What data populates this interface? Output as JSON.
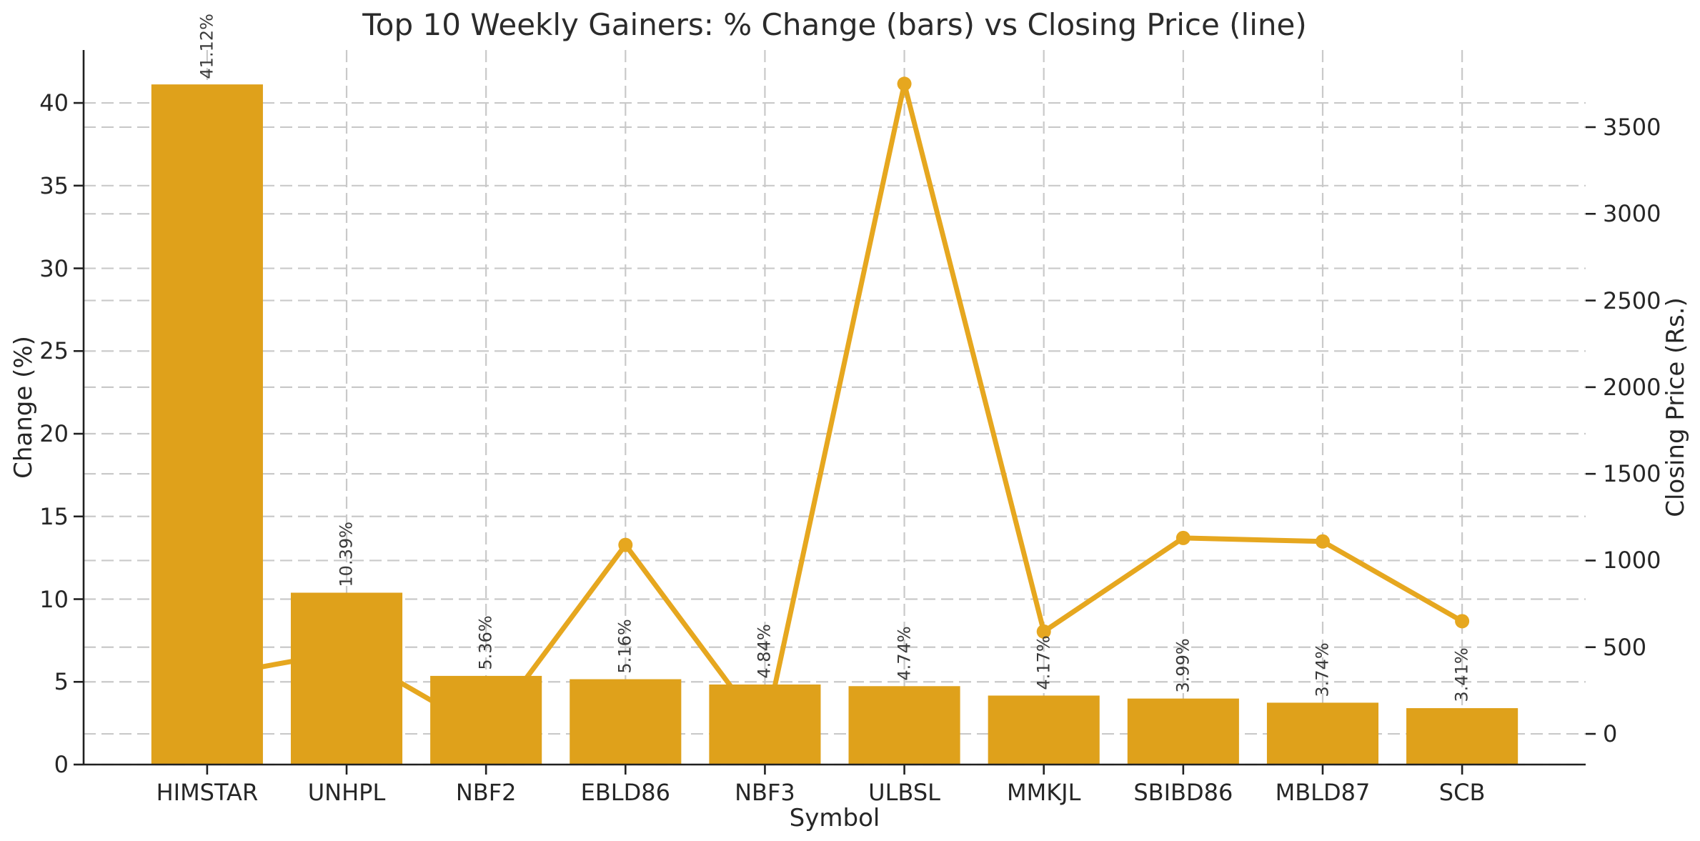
{
  "chart_data": {
    "type": "bar",
    "combo_types": [
      "bar",
      "line"
    ],
    "title": "Top 10 Weekly Gainers: % Change (bars) vs Closing Price (line)",
    "xlabel": "Symbol",
    "ylabel_left": "Change (%)",
    "ylabel_right": "Closing Price (Rs.)",
    "categories": [
      "HIMSTAR",
      "UNHPL",
      "NBF2",
      "EBLD86",
      "NBF3",
      "ULBSL",
      "MMKJL",
      "SBIBD86",
      "MBLD87",
      "SCB"
    ],
    "series": [
      {
        "name": "% Change (bars)",
        "type": "bar",
        "axis": "left",
        "values": [
          41.12,
          10.39,
          5.36,
          5.16,
          4.84,
          4.74,
          4.17,
          3.99,
          3.74,
          3.41
        ],
        "data_labels": [
          "41.12%",
          "10.39%",
          "5.36%",
          "5.16%",
          "4.84%",
          "4.74%",
          "4.17%",
          "3.99%",
          "3.74%",
          "3.41%"
        ],
        "color": "#DFA11B"
      },
      {
        "name": "Closing Price (line)",
        "type": "line",
        "axis": "right",
        "values": [
          330,
          475,
          10,
          1090,
          10,
          3750,
          590,
          1130,
          1110,
          650
        ],
        "color": "#E6A71F",
        "marker": "circle"
      }
    ],
    "left_axis": {
      "ticks": [
        0,
        5,
        10,
        15,
        20,
        25,
        30,
        35,
        40
      ],
      "lim": [
        0,
        43.2
      ]
    },
    "right_axis": {
      "ticks": [
        0,
        500,
        1000,
        1500,
        2000,
        2500,
        3000,
        3500
      ],
      "lim": [
        -177,
        3945
      ]
    },
    "x_axis": {
      "slot_lim": [
        -0.886,
        9.886
      ],
      "bar_width": 0.8
    },
    "grid": {
      "on": true,
      "style": "dashed",
      "color": "#c9c9c9"
    },
    "spine_color": "#212121",
    "text_color": "#262626",
    "annotation_color": "#3a3a3a",
    "legend": "none"
  }
}
